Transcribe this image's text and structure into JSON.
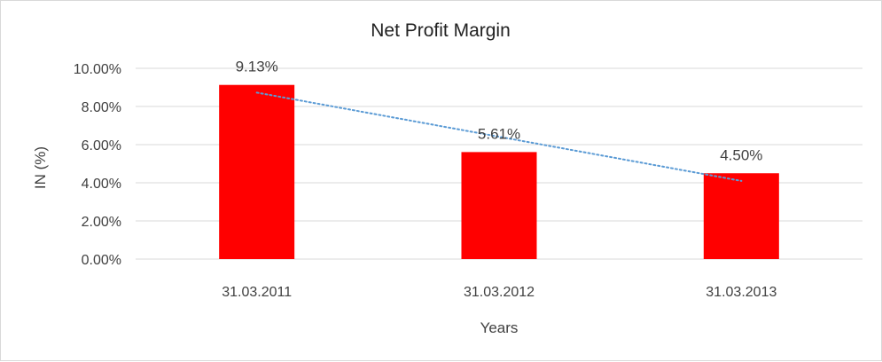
{
  "chart_data": {
    "type": "bar",
    "title": "Net Profit Margin",
    "xlabel": "Years",
    "ylabel": "IN (%)",
    "categories": [
      "31.03.2011",
      "31.03.2012",
      "31.03.2013"
    ],
    "values": [
      9.13,
      5.61,
      4.5
    ],
    "data_labels": [
      "9.13%",
      "5.61%",
      "4.50%"
    ],
    "ylim": [
      0,
      10
    ],
    "yticks": [
      0,
      2,
      4,
      6,
      8,
      10
    ],
    "ytick_labels": [
      "0.00%",
      "2.00%",
      "4.00%",
      "6.00%",
      "8.00%",
      "10.00%"
    ],
    "trendline": {
      "type": "linear",
      "style": "dotted",
      "color": "#5b9bd5"
    },
    "bar_color": "#ff0000",
    "grid": true,
    "legend": "none"
  }
}
